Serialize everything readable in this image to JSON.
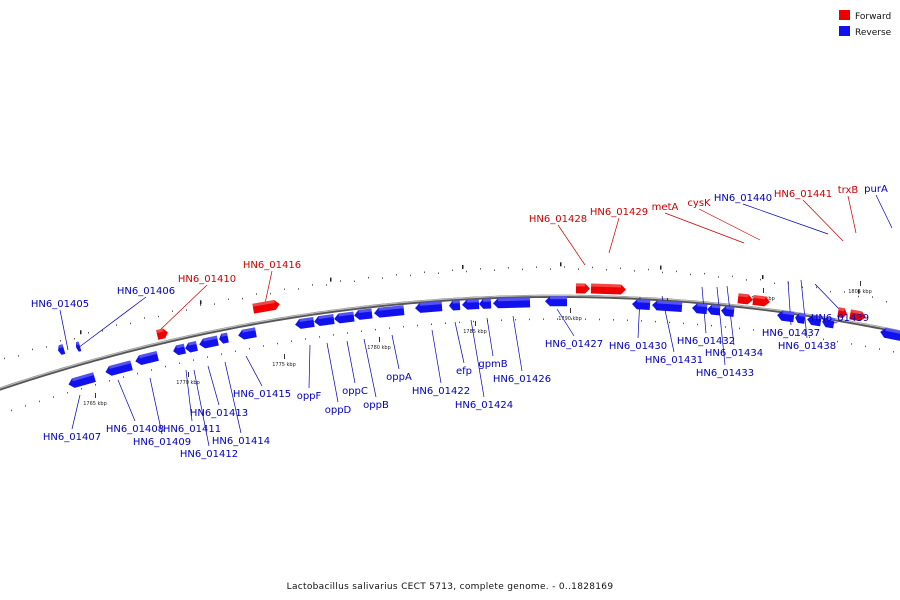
{
  "caption": "Lactobacillus salivarius CECT 5713, complete genome. - 0..1828169",
  "legend": [
    {
      "label": "Forward",
      "color": "#ee0000"
    },
    {
      "label": "Reverse",
      "color": "#1111ee"
    }
  ],
  "colors": {
    "forward": "#ee0000",
    "forward_label": "#cc0000",
    "reverse": "#1111ee",
    "reverse_label": "#0000bb",
    "backbone": "#888888"
  },
  "scale": [
    "1765 kbp",
    "1770 kbp",
    "1775 kbp",
    "1780 kbp",
    "1785 kbp",
    "1790 kbp",
    "1795 kbp",
    "1800 kbp",
    "1805 kbp"
  ],
  "genes": [
    {
      "label": "HN6_01405",
      "strand": "reverse"
    },
    {
      "label": "HN6_01406",
      "strand": "reverse"
    },
    {
      "label": "HN6_01407",
      "strand": "reverse"
    },
    {
      "label": "HN6_01408",
      "strand": "reverse"
    },
    {
      "label": "HN6_01409",
      "strand": "reverse"
    },
    {
      "label": "HN6_01410",
      "strand": "forward"
    },
    {
      "label": "HN6_01411",
      "strand": "reverse"
    },
    {
      "label": "HN6_01412",
      "strand": "reverse"
    },
    {
      "label": "HN6_01413",
      "strand": "reverse"
    },
    {
      "label": "HN6_01414",
      "strand": "reverse"
    },
    {
      "label": "HN6_01415",
      "strand": "reverse"
    },
    {
      "label": "HN6_01416",
      "strand": "forward"
    },
    {
      "label": "oppF",
      "strand": "reverse"
    },
    {
      "label": "oppD",
      "strand": "reverse"
    },
    {
      "label": "oppC",
      "strand": "reverse"
    },
    {
      "label": "oppB",
      "strand": "reverse"
    },
    {
      "label": "oppA",
      "strand": "reverse"
    },
    {
      "label": "HN6_01422",
      "strand": "reverse"
    },
    {
      "label": "efp",
      "strand": "reverse"
    },
    {
      "label": "HN6_01424",
      "strand": "reverse"
    },
    {
      "label": "gpmB",
      "strand": "reverse"
    },
    {
      "label": "HN6_01426",
      "strand": "reverse"
    },
    {
      "label": "HN6_01427",
      "strand": "reverse"
    },
    {
      "label": "HN6_01428",
      "strand": "forward"
    },
    {
      "label": "HN6_01429",
      "strand": "forward"
    },
    {
      "label": "HN6_01430",
      "strand": "reverse"
    },
    {
      "label": "HN6_01431",
      "strand": "reverse"
    },
    {
      "label": "HN6_01432",
      "strand": "reverse"
    },
    {
      "label": "HN6_01433",
      "strand": "reverse"
    },
    {
      "label": "HN6_01434",
      "strand": "reverse"
    },
    {
      "label": "metA",
      "strand": "forward"
    },
    {
      "label": "cysK",
      "strand": "forward"
    },
    {
      "label": "HN6_01437",
      "strand": "reverse"
    },
    {
      "label": "HN6_01438",
      "strand": "reverse"
    },
    {
      "label": "HN6_01439",
      "strand": "reverse"
    },
    {
      "label": "HN6_01440",
      "strand": "reverse"
    },
    {
      "label": "HN6_01441",
      "strand": "forward"
    },
    {
      "label": "trxB",
      "strand": "forward"
    },
    {
      "label": "purA",
      "strand": "reverse"
    }
  ]
}
